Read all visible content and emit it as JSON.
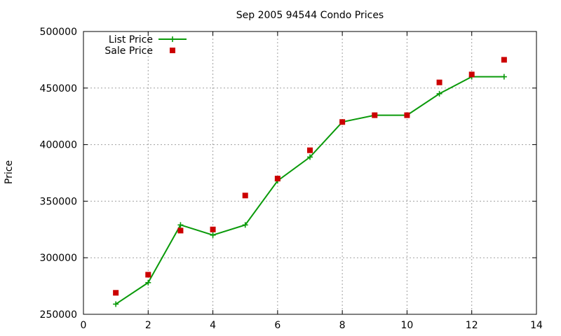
{
  "chart_data": {
    "type": "line",
    "title": "Sep 2005 94544 Condo Prices",
    "xlabel": "",
    "ylabel": "Price",
    "xlim": [
      0,
      14
    ],
    "ylim": [
      250000,
      500000
    ],
    "xticks": [
      0,
      2,
      4,
      6,
      8,
      10,
      12,
      14
    ],
    "yticks": [
      250000,
      300000,
      350000,
      400000,
      450000,
      500000
    ],
    "grid": true,
    "legend_position": "top-left",
    "series": [
      {
        "name": "List Price",
        "style": "lines+points",
        "marker": "plus",
        "color": "#0a9a0a",
        "points": [
          [
            1,
            259000
          ],
          [
            2,
            278000
          ],
          [
            3,
            329000
          ],
          [
            4,
            320000
          ],
          [
            5,
            329000
          ],
          [
            6,
            368000
          ],
          [
            7,
            389000
          ],
          [
            8,
            420000
          ],
          [
            9,
            426000
          ],
          [
            10,
            426000
          ],
          [
            11,
            445000
          ],
          [
            12,
            460000
          ],
          [
            13,
            460000
          ]
        ]
      },
      {
        "name": "Sale Price",
        "style": "points",
        "marker": "square",
        "color": "#cc0000",
        "points": [
          [
            1,
            269000
          ],
          [
            2,
            285000
          ],
          [
            3,
            324000
          ],
          [
            4,
            325000
          ],
          [
            5,
            355000
          ],
          [
            6,
            370000
          ],
          [
            7,
            395000
          ],
          [
            8,
            420000
          ],
          [
            9,
            426000
          ],
          [
            10,
            426000
          ],
          [
            11,
            455000
          ],
          [
            12,
            462000
          ],
          [
            13,
            475000
          ]
        ]
      }
    ]
  }
}
